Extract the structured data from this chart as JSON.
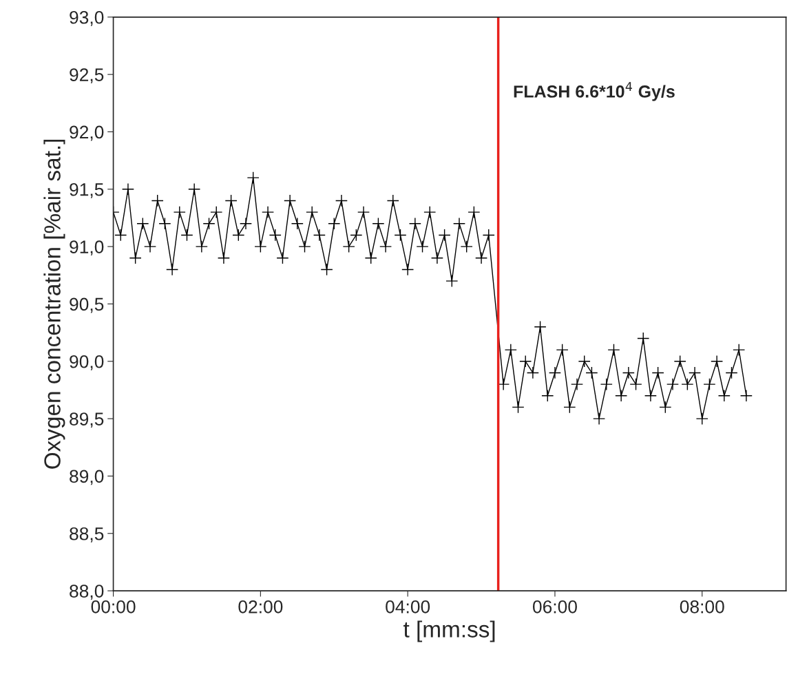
{
  "chart_data": {
    "type": "line",
    "xlabel": "t [mm:ss]",
    "ylabel": "Oxygen concentration [%air sat.]",
    "xlim": [
      0,
      9.14
    ],
    "ylim": [
      88,
      93
    ],
    "xticks": [
      {
        "value": 0,
        "label": "00:00"
      },
      {
        "value": 2,
        "label": "02:00"
      },
      {
        "value": 4,
        "label": "04:00"
      },
      {
        "value": 6,
        "label": "06:00"
      },
      {
        "value": 8,
        "label": "08:00"
      }
    ],
    "yticks": [
      {
        "value": 88,
        "label": "88,0"
      },
      {
        "value": 88.5,
        "label": "88,5"
      },
      {
        "value": 89,
        "label": "89,0"
      },
      {
        "value": 89.5,
        "label": "89,5"
      },
      {
        "value": 90,
        "label": "90,0"
      },
      {
        "value": 90.5,
        "label": "90,5"
      },
      {
        "value": 91,
        "label": "91,0"
      },
      {
        "value": 91.5,
        "label": "91,5"
      },
      {
        "value": 92,
        "label": "92,0"
      },
      {
        "value": 92.5,
        "label": "92,5"
      },
      {
        "value": 93,
        "label": "93,0"
      }
    ],
    "grid": false,
    "legend": false,
    "marker": "cross",
    "line_style": "solid",
    "series": [
      {
        "color": "#000000",
        "x": [
          0.0,
          0.1,
          0.2,
          0.3,
          0.4,
          0.5,
          0.6,
          0.7,
          0.8,
          0.9,
          1.0,
          1.1,
          1.2,
          1.3,
          1.4,
          1.5,
          1.6,
          1.7,
          1.8,
          1.9,
          2.0,
          2.1,
          2.2,
          2.3,
          2.4,
          2.5,
          2.6,
          2.7,
          2.8,
          2.9,
          3.0,
          3.1,
          3.2,
          3.3,
          3.4,
          3.5,
          3.6,
          3.7,
          3.8,
          3.9,
          4.0,
          4.1,
          4.2,
          4.3,
          4.4,
          4.5,
          4.6,
          4.7,
          4.8,
          4.9,
          5.0,
          5.1,
          5.3,
          5.4,
          5.5,
          5.6,
          5.7,
          5.8,
          5.9,
          6.0,
          6.1,
          6.2,
          6.3,
          6.4,
          6.5,
          6.6,
          6.7,
          6.8,
          6.9,
          7.0,
          7.1,
          7.2,
          7.3,
          7.4,
          7.5,
          7.6,
          7.7,
          7.8,
          7.9,
          8.0,
          8.1,
          8.2,
          8.3,
          8.4,
          8.5,
          8.6
        ],
        "values": [
          91.3,
          91.1,
          91.5,
          90.9,
          91.2,
          91.0,
          91.4,
          91.2,
          90.8,
          91.3,
          91.1,
          91.5,
          91.0,
          91.2,
          91.3,
          90.9,
          91.4,
          91.1,
          91.2,
          91.6,
          91.0,
          91.3,
          91.1,
          90.9,
          91.4,
          91.2,
          91.0,
          91.3,
          91.1,
          90.8,
          91.2,
          91.4,
          91.0,
          91.1,
          91.3,
          90.9,
          91.2,
          91.0,
          91.4,
          91.1,
          90.8,
          91.2,
          91.0,
          91.3,
          90.9,
          91.1,
          90.7,
          91.2,
          91.0,
          91.3,
          90.9,
          91.1,
          89.8,
          90.1,
          89.6,
          90.0,
          89.9,
          90.3,
          89.7,
          89.9,
          90.1,
          89.6,
          89.8,
          90.0,
          89.9,
          89.5,
          89.8,
          90.1,
          89.7,
          89.9,
          89.8,
          90.2,
          89.7,
          89.9,
          89.6,
          89.8,
          90.0,
          89.8,
          89.9,
          89.5,
          89.8,
          90.0,
          89.7,
          89.9,
          90.1,
          89.7
        ]
      }
    ],
    "ref_lines": [
      {
        "axis": "x",
        "value": 5.23,
        "label": "FLASH 6.6*10$^{4}$ Gy/s",
        "color": "#e8211d",
        "line_style": "solid"
      }
    ]
  }
}
